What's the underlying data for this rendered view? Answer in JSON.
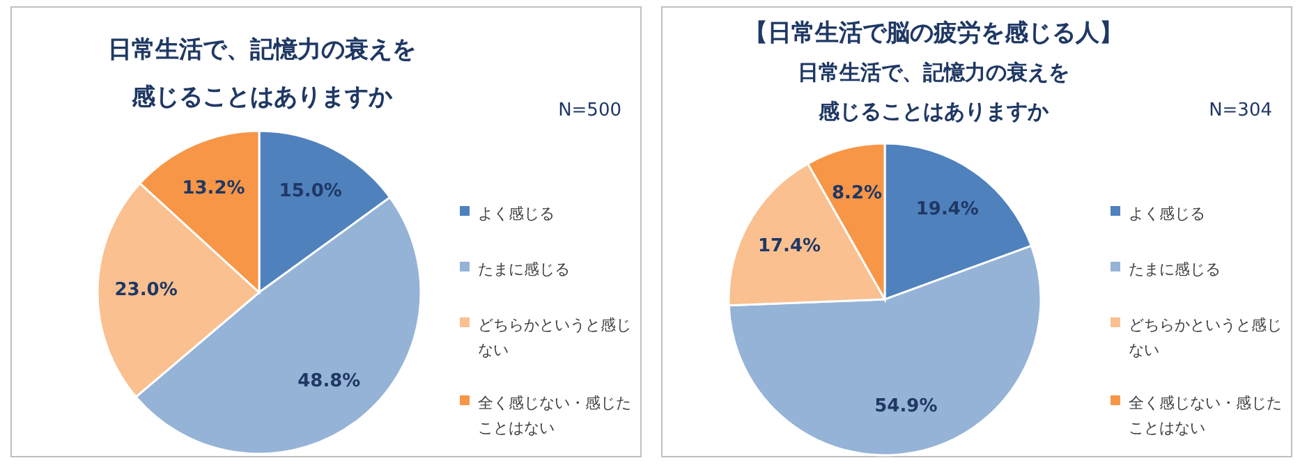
{
  "chart_data": [
    {
      "type": "pie",
      "title": "日常生活で、記憶力の衰えを感じることはありますか",
      "annotations": [
        "N=500"
      ],
      "categories": [
        "よく感じる",
        "たまに感じる",
        "どちらかというと感じない",
        "全く感じない・感じたことはない"
      ],
      "values": [
        15.0,
        48.8,
        23.0,
        13.2
      ],
      "value_labels": [
        "15.0%",
        "48.8%",
        "23.0%",
        "13.2%"
      ],
      "colors": [
        "#4f81bd",
        "#95b3d7",
        "#fac090",
        "#f79646"
      ],
      "legend": "right"
    },
    {
      "type": "pie",
      "title": "【日常生活で脳の疲労を感じる人】",
      "subtitle": "日常生活で、記憶力の衰えを感じることはありますか",
      "annotations": [
        "N=304"
      ],
      "categories": [
        "よく感じる",
        "たまに感じる",
        "どちらかというと感じない",
        "全く感じない・感じたことはない"
      ],
      "values": [
        19.4,
        54.9,
        17.4,
        8.2
      ],
      "value_labels": [
        "19.4%",
        "54.9%",
        "17.4%",
        "8.2%"
      ],
      "colors": [
        "#4f81bd",
        "#95b3d7",
        "#fac090",
        "#f79646"
      ],
      "legend": "right"
    }
  ]
}
